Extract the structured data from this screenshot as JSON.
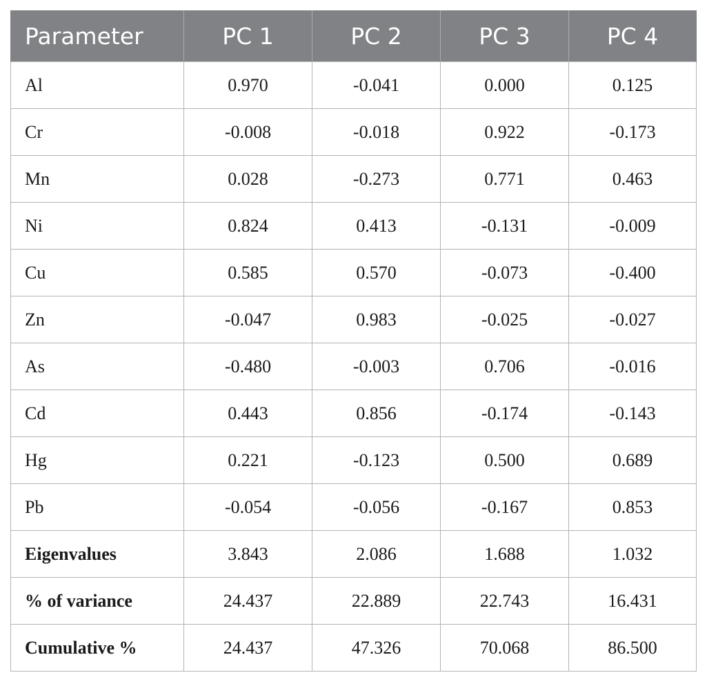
{
  "table": {
    "headers": [
      "Parameter",
      "PC 1",
      "PC 2",
      "PC 3",
      "PC 4"
    ],
    "rows": [
      {
        "label": "Al",
        "values": [
          "0.970",
          "-0.041",
          "0.000",
          "0.125"
        ]
      },
      {
        "label": "Cr",
        "values": [
          "-0.008",
          "-0.018",
          "0.922",
          "-0.173"
        ]
      },
      {
        "label": "Mn",
        "values": [
          "0.028",
          "-0.273",
          "0.771",
          "0.463"
        ]
      },
      {
        "label": "Ni",
        "values": [
          "0.824",
          "0.413",
          "-0.131",
          "-0.009"
        ]
      },
      {
        "label": "Cu",
        "values": [
          "0.585",
          "0.570",
          "-0.073",
          "-0.400"
        ]
      },
      {
        "label": "Zn",
        "values": [
          "-0.047",
          "0.983",
          "-0.025",
          "-0.027"
        ]
      },
      {
        "label": "As",
        "values": [
          "-0.480",
          "-0.003",
          "0.706",
          "-0.016"
        ]
      },
      {
        "label": "Cd",
        "values": [
          "0.443",
          "0.856",
          "-0.174",
          "-0.143"
        ]
      },
      {
        "label": "Hg",
        "values": [
          "0.221",
          "-0.123",
          "0.500",
          "0.689"
        ]
      },
      {
        "label": "Pb",
        "values": [
          "-0.054",
          "-0.056",
          "-0.167",
          "0.853"
        ]
      }
    ],
    "summary_rows": [
      {
        "label": "Eigenvalues",
        "values": [
          "3.843",
          "2.086",
          "1.688",
          "1.032"
        ]
      },
      {
        "label": "% of variance",
        "values": [
          "24.437",
          "22.889",
          "22.743",
          "16.431"
        ]
      },
      {
        "label": "Cumulative %",
        "values": [
          "24.437",
          "47.326",
          "70.068",
          "86.500"
        ]
      }
    ]
  }
}
